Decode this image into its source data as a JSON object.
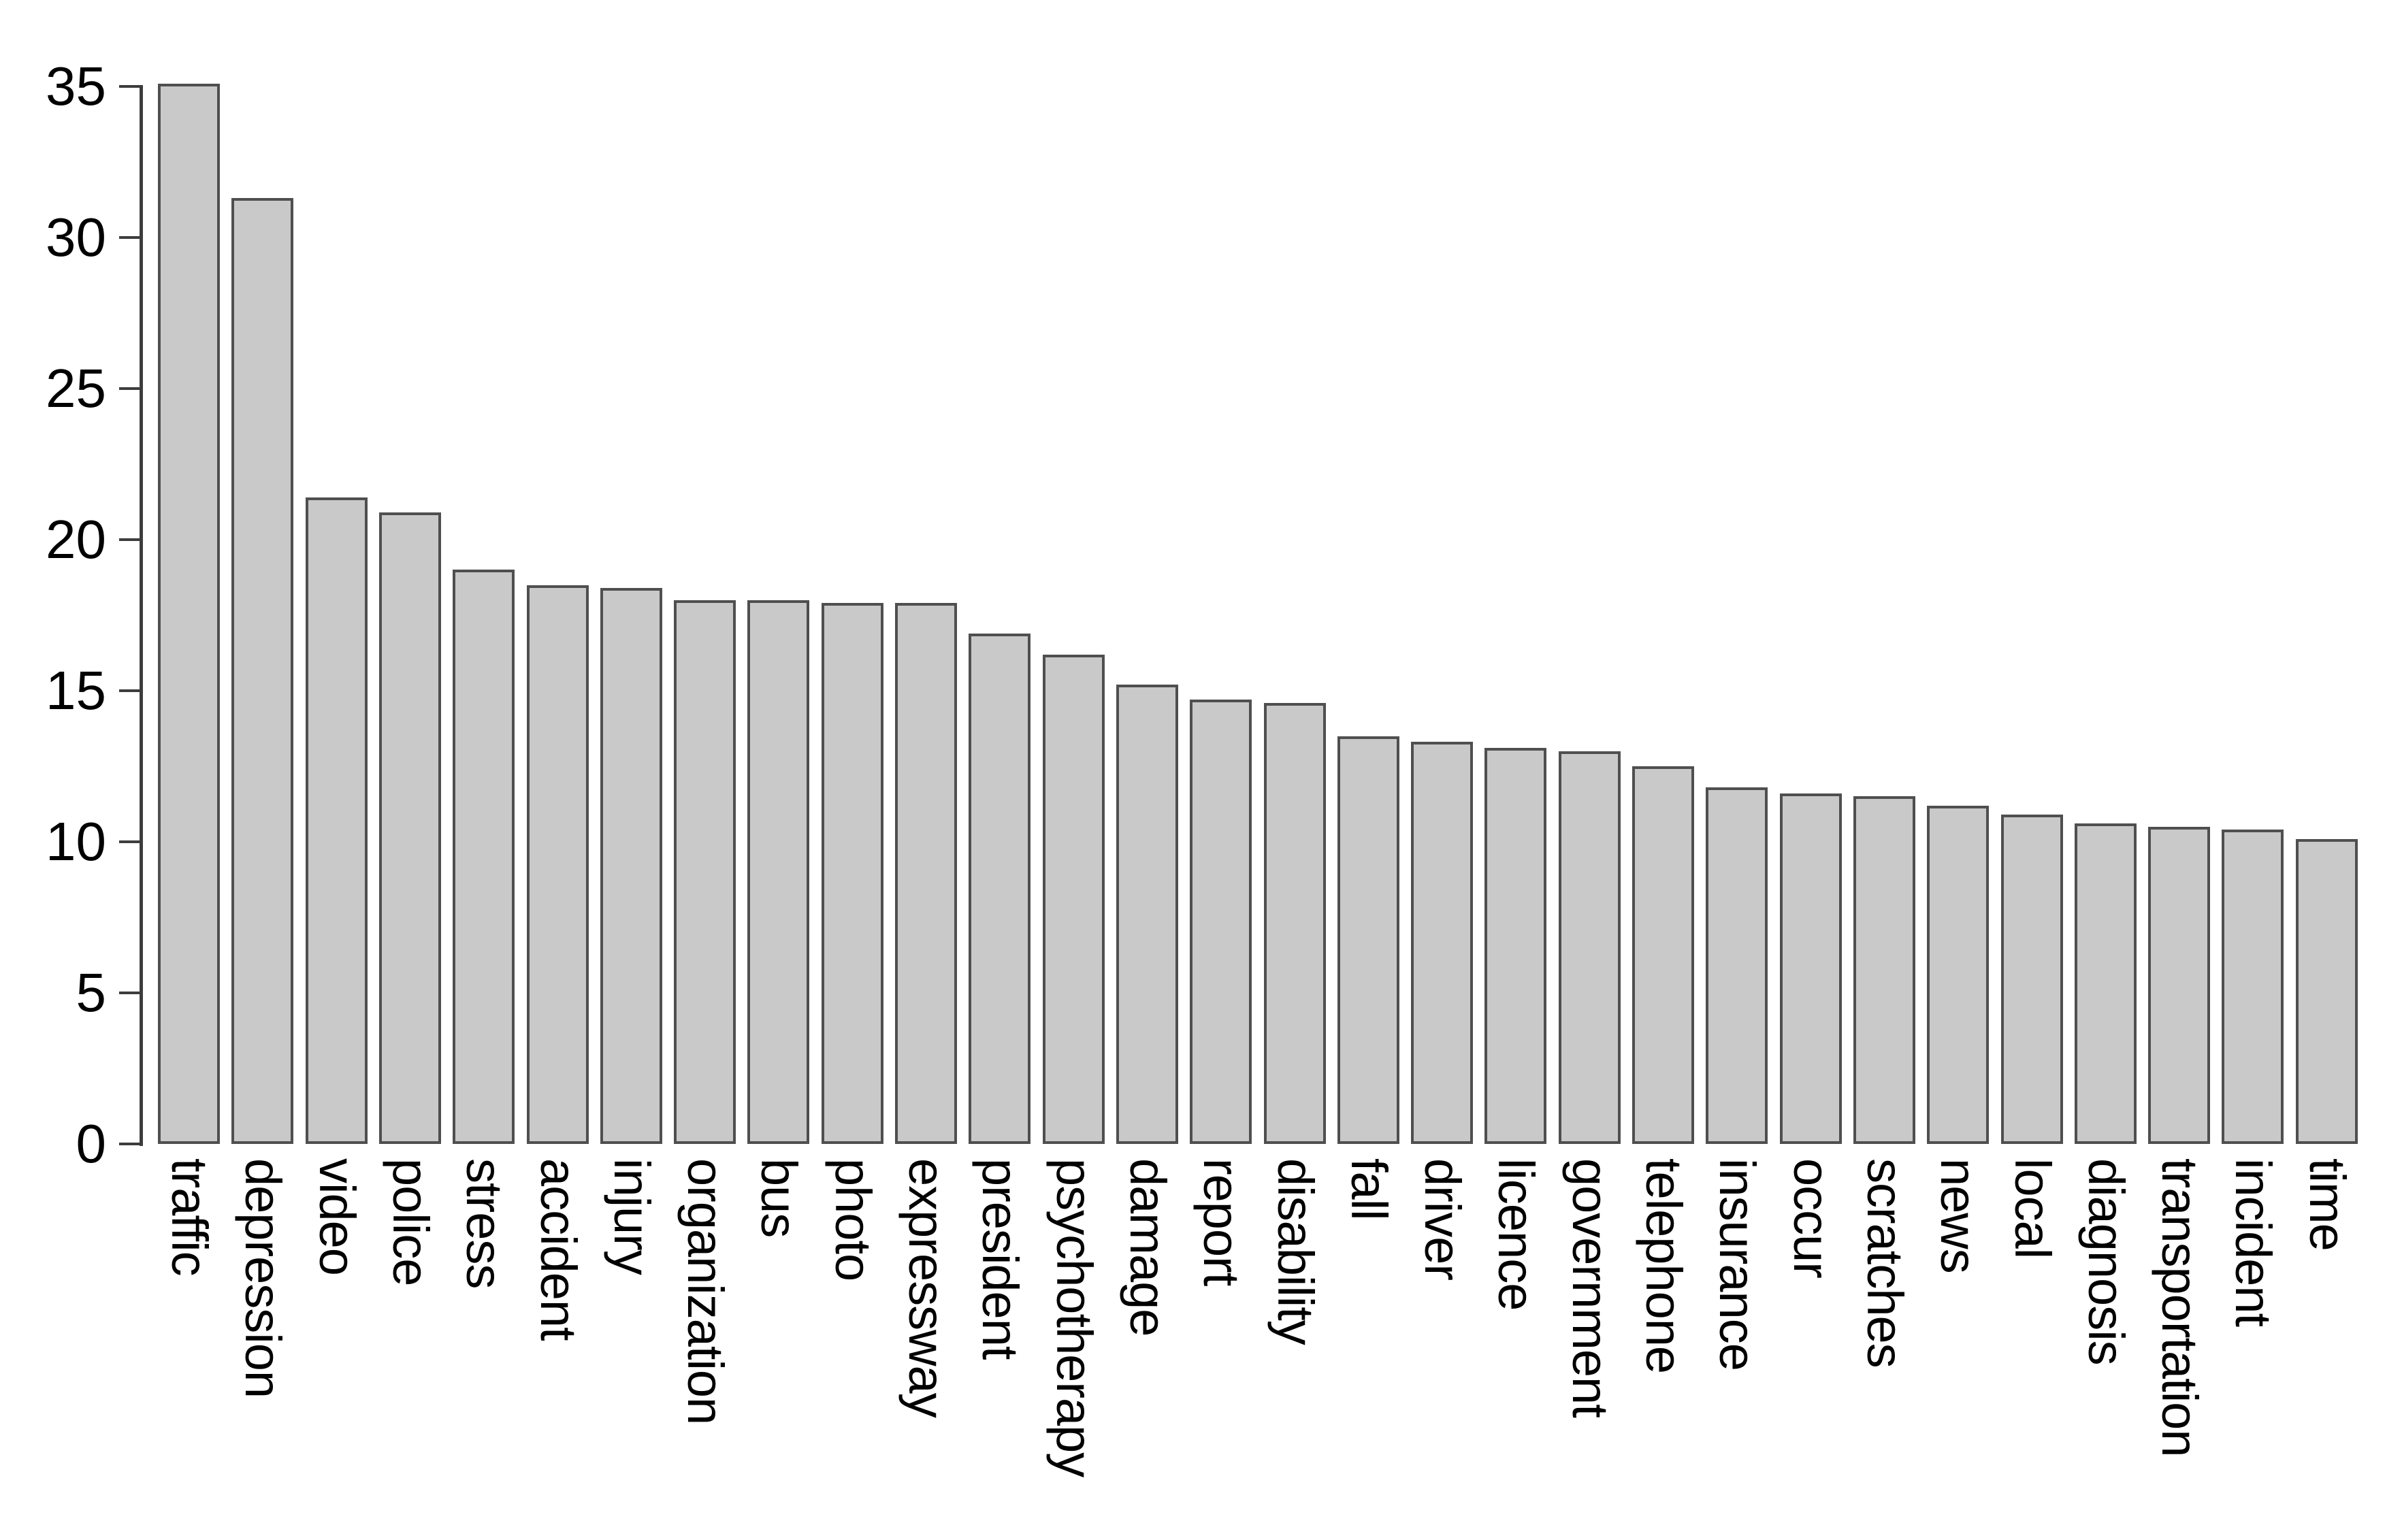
{
  "chart_data": {
    "type": "bar",
    "title": "",
    "xlabel": "",
    "ylabel": "",
    "categories": [
      "traffic",
      "depression",
      "video",
      "police",
      "stress",
      "accident",
      "injury",
      "organization",
      "bus",
      "photo",
      "expressway",
      "president",
      "psychotherapy",
      "damage",
      "report",
      "disability",
      "fall",
      "driver",
      "licence",
      "government",
      "telephone",
      "insurance",
      "occur",
      "scratches",
      "news",
      "local",
      "diagnosis",
      "transportation",
      "incident",
      "time"
    ],
    "values": [
      35.1,
      31.3,
      21.4,
      20.9,
      19.0,
      18.5,
      18.4,
      18.0,
      18.0,
      17.9,
      17.9,
      16.9,
      16.2,
      15.2,
      14.7,
      14.6,
      13.5,
      13.3,
      13.1,
      13.0,
      12.5,
      11.8,
      11.6,
      11.5,
      11.2,
      10.9,
      10.6,
      10.5,
      10.4,
      10.1
    ],
    "ylim": [
      0,
      35
    ],
    "yticks": [
      0,
      5,
      10,
      15,
      20,
      25,
      30,
      35
    ],
    "grid": false,
    "legend_position": "none",
    "bar_orientation": "vertical",
    "x_label_rotation_deg": 90,
    "colors": {
      "bar_fill": "#c9c9c9",
      "bar_border": "#4f4f4f",
      "axis": "#3d3d3d",
      "text": "#000000",
      "background": "#ffffff"
    }
  }
}
